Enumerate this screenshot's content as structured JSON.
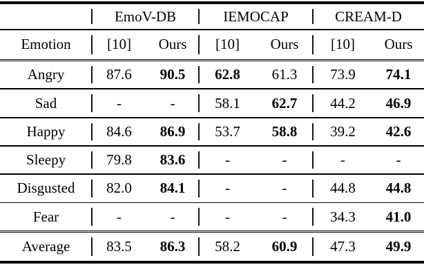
{
  "page": {
    "background_color": "#ffffff",
    "text_color": "#000000"
  },
  "table": {
    "dataset_headers": [
      "EmoV-DB",
      "IEMOCAP",
      "CREAM-D"
    ],
    "emotion_header": "Emotion",
    "method_headers": [
      "[10]",
      "Ours",
      "[10]",
      "Ours",
      "[10]",
      "Ours"
    ],
    "rows": [
      {
        "emotion": "Angry",
        "cells": [
          {
            "v": "87.6",
            "bold": false
          },
          {
            "v": "90.5",
            "bold": true
          },
          {
            "v": "62.8",
            "bold": true
          },
          {
            "v": "61.3",
            "bold": false
          },
          {
            "v": "73.9",
            "bold": false
          },
          {
            "v": "74.1",
            "bold": true
          }
        ]
      },
      {
        "emotion": "Sad",
        "cells": [
          {
            "v": "-",
            "bold": false
          },
          {
            "v": "-",
            "bold": false
          },
          {
            "v": "58.1",
            "bold": false
          },
          {
            "v": "62.7",
            "bold": true
          },
          {
            "v": "44.2",
            "bold": false
          },
          {
            "v": "46.9",
            "bold": true
          }
        ]
      },
      {
        "emotion": "Happy",
        "cells": [
          {
            "v": "84.6",
            "bold": false
          },
          {
            "v": "86.9",
            "bold": true
          },
          {
            "v": "53.7",
            "bold": false
          },
          {
            "v": "58.8",
            "bold": true
          },
          {
            "v": "39.2",
            "bold": false
          },
          {
            "v": "42.6",
            "bold": true
          }
        ]
      },
      {
        "emotion": "Sleepy",
        "cells": [
          {
            "v": "79.8",
            "bold": false
          },
          {
            "v": "83.6",
            "bold": true
          },
          {
            "v": "-",
            "bold": false
          },
          {
            "v": "-",
            "bold": false
          },
          {
            "v": "-",
            "bold": false
          },
          {
            "v": "-",
            "bold": false
          }
        ]
      },
      {
        "emotion": "Disgusted",
        "cells": [
          {
            "v": "82.0",
            "bold": false
          },
          {
            "v": "84.1",
            "bold": true
          },
          {
            "v": "-",
            "bold": false
          },
          {
            "v": "-",
            "bold": false
          },
          {
            "v": "44.8",
            "bold": false
          },
          {
            "v": "44.8",
            "bold": true
          }
        ]
      },
      {
        "emotion": "Fear",
        "cells": [
          {
            "v": "-",
            "bold": false
          },
          {
            "v": "-",
            "bold": false
          },
          {
            "v": "-",
            "bold": false
          },
          {
            "v": "-",
            "bold": false
          },
          {
            "v": "34.3",
            "bold": false
          },
          {
            "v": "41.0",
            "bold": true
          }
        ]
      }
    ],
    "average_row": {
      "emotion": "Average",
      "cells": [
        {
          "v": "83.5",
          "bold": false
        },
        {
          "v": "86.3",
          "bold": true
        },
        {
          "v": "58.2",
          "bold": false
        },
        {
          "v": "60.9",
          "bold": true
        },
        {
          "v": "47.3",
          "bold": false
        },
        {
          "v": "49.9",
          "bold": true
        }
      ]
    }
  }
}
